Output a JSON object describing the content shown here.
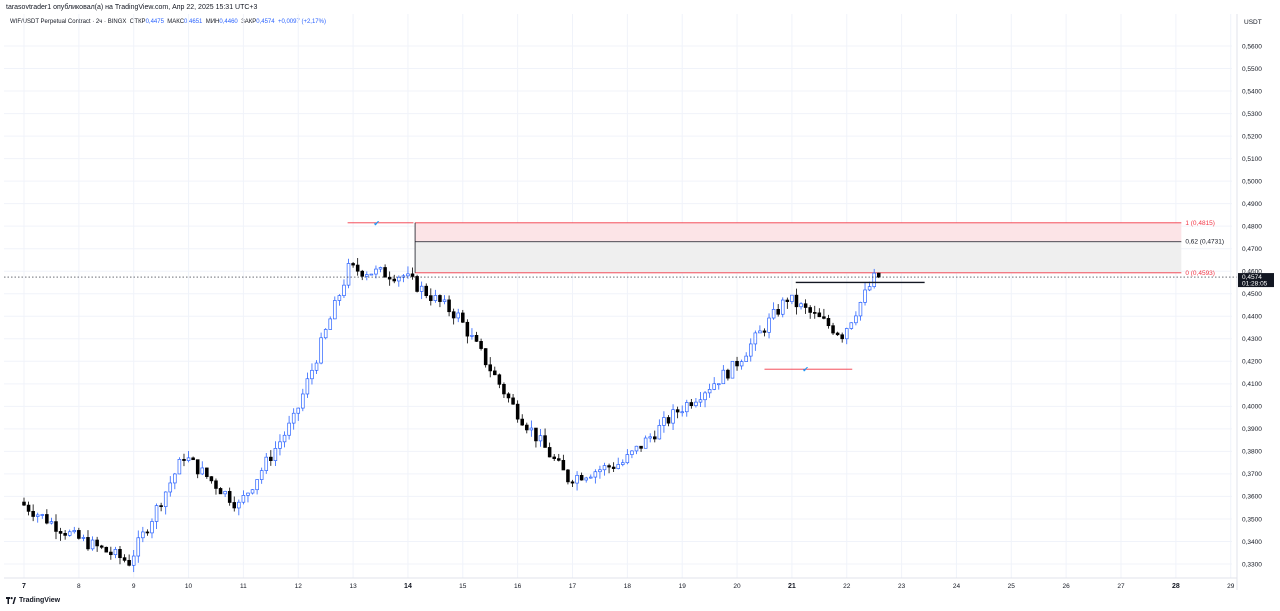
{
  "header": {
    "published": "tarasovtrader1 опубликовал(а) на TradingView.com, Апр 22, 2025 15:31 UTC+3",
    "symbol": "WIF/USDT Perpetual Contract · 2ч · BINGX",
    "open_label": "ОТКР",
    "open": "0,4475",
    "high_label": "МАКС",
    "high": "0,4651",
    "low_label": "МИН",
    "low": "0,4460",
    "close_label": "ЗАКР",
    "close": "0,4574",
    "change": "+0,0097 (+2,17%)"
  },
  "price_axis": {
    "unit": "USDT",
    "current_price": "0,4574",
    "countdown": "01:28:05"
  },
  "fib_levels": [
    {
      "label": "1 (0,4815)",
      "value": 0.4815,
      "color": "#f23645"
    },
    {
      "label": "0,62 (0,4731)",
      "value": 0.4731,
      "color": "#131722"
    },
    {
      "label": "0 (0,4593)",
      "value": 0.4593,
      "color": "#f23645"
    }
  ],
  "brand": {
    "name": "TradingView"
  },
  "colors": {
    "up": "#2962ff",
    "down": "#000000",
    "fib": "#f23645",
    "zone": "#fce4e7",
    "zone_gray": "#efefef"
  },
  "chart_data": {
    "type": "candlestick",
    "ylim": [
      0.326,
      0.5665
    ],
    "y_ticks": [
      0.56,
      0.55,
      0.54,
      0.53,
      0.52,
      0.51,
      0.5,
      0.49,
      0.48,
      0.47,
      0.46,
      0.45,
      0.44,
      0.43,
      0.42,
      0.41,
      0.4,
      0.39,
      0.38,
      0.37,
      0.36,
      0.35,
      0.34,
      0.33
    ],
    "y_tick_labels": [
      "0,5600",
      "0,5500",
      "0,5400",
      "0,5300",
      "0,5200",
      "0,5100",
      "0,5000",
      "0,4900",
      "0,4800",
      "0,4700",
      "0,4600",
      "0,4500",
      "0,4400",
      "0,4300",
      "0,4200",
      "0,4100",
      "0,4000",
      "0,3900",
      "0,3800",
      "0,3700",
      "0,3600",
      "0,3500",
      "0,3400",
      "0,3300"
    ],
    "x_ticks": [
      "7",
      "8",
      "9",
      "10",
      "11",
      "12",
      "13",
      "14",
      "15",
      "16",
      "17",
      "18",
      "19",
      "20",
      "21",
      "22",
      "23",
      "24",
      "25",
      "26",
      "27",
      "28",
      "29"
    ],
    "x_bold": [
      "7",
      "14",
      "21",
      "28"
    ],
    "day_anchors": [
      [
        7,
        0.3575
      ],
      [
        8,
        0.342
      ],
      [
        9,
        0.331
      ],
      [
        10,
        0.378
      ],
      [
        11,
        0.356
      ],
      [
        12,
        0.394
      ],
      [
        13,
        0.461
      ],
      [
        14,
        0.458
      ],
      [
        15,
        0.44
      ],
      [
        16,
        0.4
      ],
      [
        17,
        0.368
      ],
      [
        18,
        0.375
      ],
      [
        19,
        0.398
      ],
      [
        20,
        0.417
      ],
      [
        21,
        0.448
      ],
      [
        22,
        0.432
      ],
      [
        22.6,
        0.4574
      ]
    ],
    "swing_high": 0.4815,
    "swing_low": 0.4165,
    "last_close": 0.4574
  }
}
